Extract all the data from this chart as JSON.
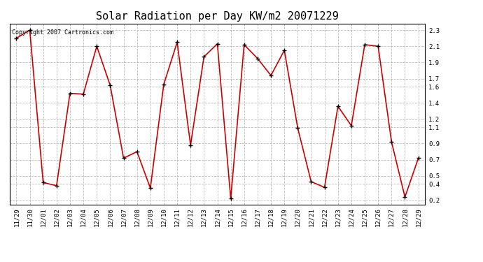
{
  "title": "Solar Radiation per Day KW/m2 20071229",
  "copyright_text": "Copyright 2007 Cartronics.com",
  "labels": [
    "11/29",
    "11/30",
    "12/01",
    "12/02",
    "12/03",
    "12/04",
    "12/05",
    "12/06",
    "12/07",
    "12/08",
    "12/09",
    "12/10",
    "12/11",
    "12/12",
    "12/13",
    "12/14",
    "12/15",
    "12/16",
    "12/17",
    "12/18",
    "12/19",
    "12/20",
    "12/21",
    "12/22",
    "12/23",
    "12/24",
    "12/25",
    "12/26",
    "12/27",
    "12/28",
    "12/29"
  ],
  "values": [
    2.2,
    2.3,
    0.42,
    0.38,
    1.52,
    1.51,
    2.1,
    1.62,
    0.72,
    0.8,
    0.35,
    1.63,
    2.15,
    0.88,
    1.97,
    2.13,
    0.22,
    2.12,
    1.95,
    1.74,
    2.05,
    1.09,
    0.43,
    0.36,
    1.36,
    1.12,
    2.12,
    2.1,
    0.92,
    0.24,
    0.72
  ],
  "line_color": "#cc0000",
  "marker": "+",
  "marker_color": "#000000",
  "bg_color": "#ffffff",
  "plot_bg_color": "#ffffff",
  "grid_color": "#bbbbbb",
  "ylim": [
    0.15,
    2.38
  ],
  "yticks": [
    0.2,
    0.4,
    0.5,
    0.7,
    0.9,
    1.1,
    1.2,
    1.4,
    1.6,
    1.7,
    1.9,
    2.1,
    2.3
  ],
  "title_fontsize": 11,
  "tick_fontsize": 6.5,
  "copyright_fontsize": 6
}
